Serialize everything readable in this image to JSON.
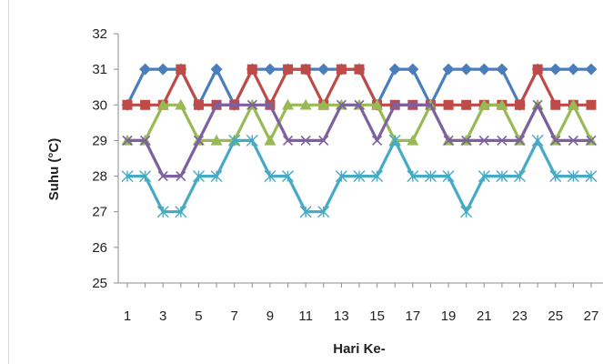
{
  "chart_data": {
    "type": "line",
    "title": "",
    "xlabel": "Hari Ke-",
    "ylabel": "Suhu (°C)",
    "ylim": [
      25,
      32
    ],
    "yticks": [
      25,
      26,
      27,
      28,
      29,
      30,
      31,
      32
    ],
    "xlim": [
      1,
      27
    ],
    "xticks": [
      1,
      3,
      5,
      7,
      9,
      11,
      13,
      15,
      17,
      19,
      21,
      23,
      25,
      27
    ],
    "grid": false,
    "legend": "none",
    "x": [
      1,
      2,
      3,
      4,
      5,
      6,
      7,
      8,
      9,
      10,
      11,
      12,
      13,
      14,
      15,
      16,
      17,
      18,
      19,
      20,
      21,
      22,
      23,
      24,
      25,
      26,
      27
    ],
    "series": [
      {
        "color": "#4a7ebb",
        "marker": "diamond",
        "values": [
          30,
          31,
          31,
          31,
          30,
          31,
          30,
          31,
          31,
          31,
          31,
          31,
          31,
          31,
          30,
          31,
          31,
          30,
          31,
          31,
          31,
          31,
          30,
          31,
          31,
          31,
          31
        ]
      },
      {
        "color": "#be4b48",
        "marker": "square",
        "values": [
          30,
          30,
          30,
          31,
          30,
          30,
          30,
          31,
          30,
          31,
          31,
          30,
          31,
          31,
          30,
          30,
          30,
          30,
          30,
          30,
          30,
          30,
          30,
          31,
          30,
          30,
          30
        ]
      },
      {
        "color": "#98b954",
        "marker": "triangle",
        "values": [
          29,
          29,
          30,
          30,
          29,
          29,
          29,
          30,
          29,
          30,
          30,
          30,
          30,
          30,
          30,
          29,
          29,
          30,
          29,
          29,
          30,
          30,
          29,
          30,
          29,
          30,
          29
        ]
      },
      {
        "color": "#7d60a0",
        "marker": "x",
        "values": [
          29,
          29,
          28,
          28,
          29,
          30,
          30,
          30,
          30,
          29,
          29,
          29,
          30,
          30,
          29,
          30,
          30,
          30,
          29,
          29,
          29,
          29,
          29,
          30,
          29,
          29,
          29
        ]
      },
      {
        "color": "#46aac5",
        "marker": "star",
        "values": [
          28,
          28,
          27,
          27,
          28,
          28,
          29,
          29,
          28,
          28,
          27,
          27,
          28,
          28,
          28,
          29,
          28,
          28,
          28,
          27,
          28,
          28,
          28,
          29,
          28,
          28,
          28
        ]
      }
    ]
  }
}
